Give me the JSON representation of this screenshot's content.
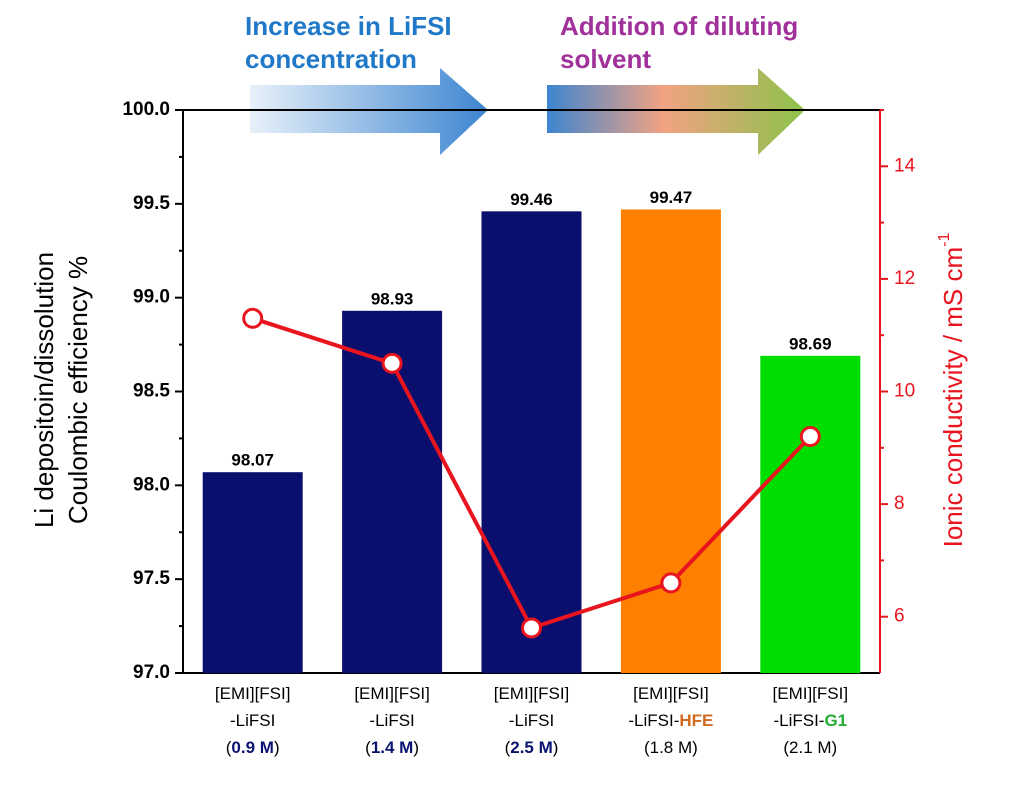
{
  "chart_data": {
    "type": "bar",
    "annotations": [
      {
        "lines": [
          "Increase in LiFSI",
          "concentration"
        ],
        "color": "#1f78c8"
      },
      {
        "lines": [
          "Addition of diluting",
          "solvent"
        ],
        "color": "#a0309a"
      }
    ],
    "ylabel": [
      "Li depositoin/dissolution",
      "Coulombic efficiency %"
    ],
    "y2label": "Ionic conductivity / mS cm",
    "y2label_sup": "-1",
    "categories": [
      [
        [
          "[EMI][FSI]"
        ],
        [
          "-LiFSI"
        ],
        [
          "(",
          {
            "text": "0.9 M",
            "color": "#0a1470"
          },
          ")"
        ]
      ],
      [
        [
          "[EMI][FSI]"
        ],
        [
          "-LiFSI"
        ],
        [
          "(",
          {
            "text": "1.4 M",
            "color": "#0a1470"
          },
          ")"
        ]
      ],
      [
        [
          "[EMI][FSI]"
        ],
        [
          "-LiFSI"
        ],
        [
          "(",
          {
            "text": "2.5 M",
            "color": "#0a1470"
          },
          ")"
        ]
      ],
      [
        [
          "[EMI][FSI]"
        ],
        [
          "-LiFSI-",
          {
            "text": "HFE",
            "color": "#d2691e"
          }
        ],
        [
          "(1.8 M)"
        ]
      ],
      [
        [
          "[EMI][FSI]"
        ],
        [
          "-LiFSI-",
          {
            "text": "G1",
            "color": "#22aa33"
          }
        ],
        [
          "(2.1 M)"
        ]
      ]
    ],
    "series": [
      {
        "type": "bar",
        "colors": [
          "#0a0f6e",
          "#0a0f6e",
          "#0a0f6e",
          "#ff8000",
          "#00dd00"
        ],
        "values": [
          98.07,
          98.93,
          99.46,
          99.47,
          98.69
        ]
      },
      {
        "type": "line",
        "axis": "y2",
        "color": "#e8141e",
        "values": [
          11.3,
          10.5,
          5.8,
          6.6,
          9.2
        ]
      }
    ],
    "ylim": [
      97,
      100
    ],
    "yticks": [
      {
        "value": 97,
        "label": "97.0"
      },
      97.5,
      {
        "value": 98,
        "label": "98.0"
      },
      98.5,
      {
        "value": 99,
        "label": "99.0"
      },
      99.5,
      {
        "value": 100,
        "label": "100.0"
      }
    ],
    "y2lim": [
      5,
      15
    ],
    "y2ticks": [
      6,
      8,
      10,
      12,
      14
    ],
    "y2color": "#e8141e"
  }
}
